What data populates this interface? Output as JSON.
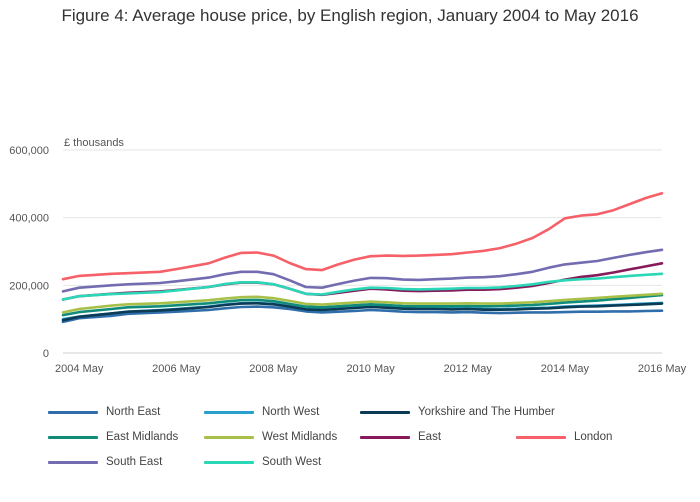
{
  "title": "Figure 4: Average house price, by English region, January 2004 to May 2016",
  "chart_data": {
    "type": "line",
    "title": "Figure 4: Average house price, by English region, January 2004 to May 2016",
    "ylabel": "£ thousands",
    "xlabel": "",
    "ylim": [
      0,
      600000
    ],
    "xlim": [
      "2004-01",
      "2016-05"
    ],
    "y_ticks": [
      "0",
      "200,000",
      "400,000",
      "600,000"
    ],
    "x_ticks": [
      "2004 May",
      "2006 May",
      "2008 May",
      "2010 May",
      "2012 May",
      "2014 May",
      "2016 May"
    ],
    "grid": true,
    "legend_position": "bottom",
    "x": [
      "2004-01",
      "2004-05",
      "2005-01",
      "2005-05",
      "2006-01",
      "2006-05",
      "2007-01",
      "2007-05",
      "2007-09",
      "2008-01",
      "2008-05",
      "2008-09",
      "2009-01",
      "2009-05",
      "2009-09",
      "2010-01",
      "2010-05",
      "2010-09",
      "2011-01",
      "2011-05",
      "2011-09",
      "2012-01",
      "2012-05",
      "2012-09",
      "2013-01",
      "2013-05",
      "2013-09",
      "2014-01",
      "2014-05",
      "2014-09",
      "2015-01",
      "2015-05",
      "2015-09",
      "2016-01",
      "2016-05"
    ],
    "series": [
      {
        "name": "North East",
        "color": "#2f6eaa",
        "values": [
          92000,
          103000,
          110000,
          116000,
          120000,
          122000,
          127000,
          132000,
          136000,
          137000,
          135000,
          130000,
          123000,
          120000,
          122000,
          124000,
          127000,
          125000,
          122000,
          121000,
          121000,
          120000,
          121000,
          119000,
          118000,
          119000,
          120000,
          120000,
          121000,
          122000,
          122000,
          123000,
          123000,
          124000,
          125000
        ]
      },
      {
        "name": "North West",
        "color": "#27a0cc",
        "values": [
          100000,
          108000,
          117000,
          122000,
          127000,
          130000,
          137000,
          143000,
          147000,
          148000,
          145000,
          138000,
          130000,
          128000,
          131000,
          134000,
          138000,
          136000,
          133000,
          132000,
          132000,
          131000,
          132000,
          130000,
          130000,
          131000,
          133000,
          134000,
          137000,
          139000,
          140000,
          142000,
          144000,
          146000,
          148000
        ]
      },
      {
        "name": "Yorkshire and The Humber",
        "color": "#0b3b55",
        "values": [
          97000,
          107000,
          117000,
          122000,
          126000,
          129000,
          136000,
          142000,
          146000,
          147000,
          144000,
          137000,
          129000,
          127000,
          130000,
          133000,
          136000,
          134000,
          131000,
          130000,
          130000,
          129000,
          130000,
          128000,
          128000,
          129000,
          131000,
          132000,
          135000,
          137000,
          138000,
          140000,
          142000,
          144000,
          146000
        ]
      },
      {
        "name": "East Midlands",
        "color": "#118c7b",
        "values": [
          112000,
          121000,
          130000,
          135000,
          138000,
          141000,
          147000,
          152000,
          156000,
          157000,
          153000,
          145000,
          137000,
          135000,
          138000,
          141000,
          144000,
          142000,
          139000,
          138000,
          138000,
          138000,
          139000,
          138000,
          139000,
          140000,
          142000,
          145000,
          149000,
          152000,
          155000,
          159000,
          163000,
          167000,
          171000
        ]
      },
      {
        "name": "West Midlands",
        "color": "#a8c04a",
        "values": [
          120000,
          130000,
          140000,
          144000,
          147000,
          150000,
          156000,
          161000,
          165000,
          166000,
          162000,
          154000,
          145000,
          143000,
          146000,
          149000,
          152000,
          150000,
          147000,
          146000,
          146000,
          146000,
          147000,
          146000,
          146000,
          148000,
          150000,
          153000,
          157000,
          160000,
          163000,
          166000,
          169000,
          172000,
          175000
        ]
      },
      {
        "name": "East",
        "color": "#871a5b",
        "values": [
          158000,
          168000,
          175000,
          178000,
          182000,
          186000,
          195000,
          203000,
          208000,
          208000,
          203000,
          190000,
          175000,
          172000,
          178000,
          184000,
          190000,
          188000,
          184000,
          183000,
          184000,
          185000,
          187000,
          187000,
          189000,
          193000,
          198000,
          207000,
          217000,
          225000,
          230000,
          238000,
          247000,
          256000,
          265000
        ]
      },
      {
        "name": "London",
        "color": "#f66068",
        "values": [
          218000,
          228000,
          234000,
          236000,
          240000,
          248000,
          265000,
          282000,
          296000,
          297000,
          288000,
          266000,
          248000,
          245000,
          262000,
          276000,
          286000,
          288000,
          287000,
          288000,
          290000,
          292000,
          297000,
          302000,
          310000,
          323000,
          340000,
          366000,
          398000,
          406000,
          410000,
          422000,
          440000,
          458000,
          472000
        ]
      },
      {
        "name": "South East",
        "color": "#746cb1",
        "values": [
          182000,
          193000,
          200000,
          203000,
          207000,
          212000,
          223000,
          233000,
          240000,
          240000,
          233000,
          215000,
          195000,
          193000,
          204000,
          214000,
          222000,
          221000,
          217000,
          216000,
          218000,
          220000,
          223000,
          224000,
          227000,
          233000,
          240000,
          252000,
          262000,
          267000,
          272000,
          281000,
          290000,
          298000,
          305000
        ]
      },
      {
        "name": "South West",
        "color": "#2ad7b6",
        "values": [
          158000,
          168000,
          174000,
          176000,
          180000,
          185000,
          195000,
          204000,
          209000,
          209000,
          203000,
          190000,
          175000,
          173000,
          181000,
          188000,
          193000,
          192000,
          189000,
          188000,
          189000,
          190000,
          192000,
          192000,
          194000,
          198000,
          203000,
          210000,
          215000,
          218000,
          220000,
          224000,
          228000,
          231000,
          234000
        ]
      }
    ]
  }
}
